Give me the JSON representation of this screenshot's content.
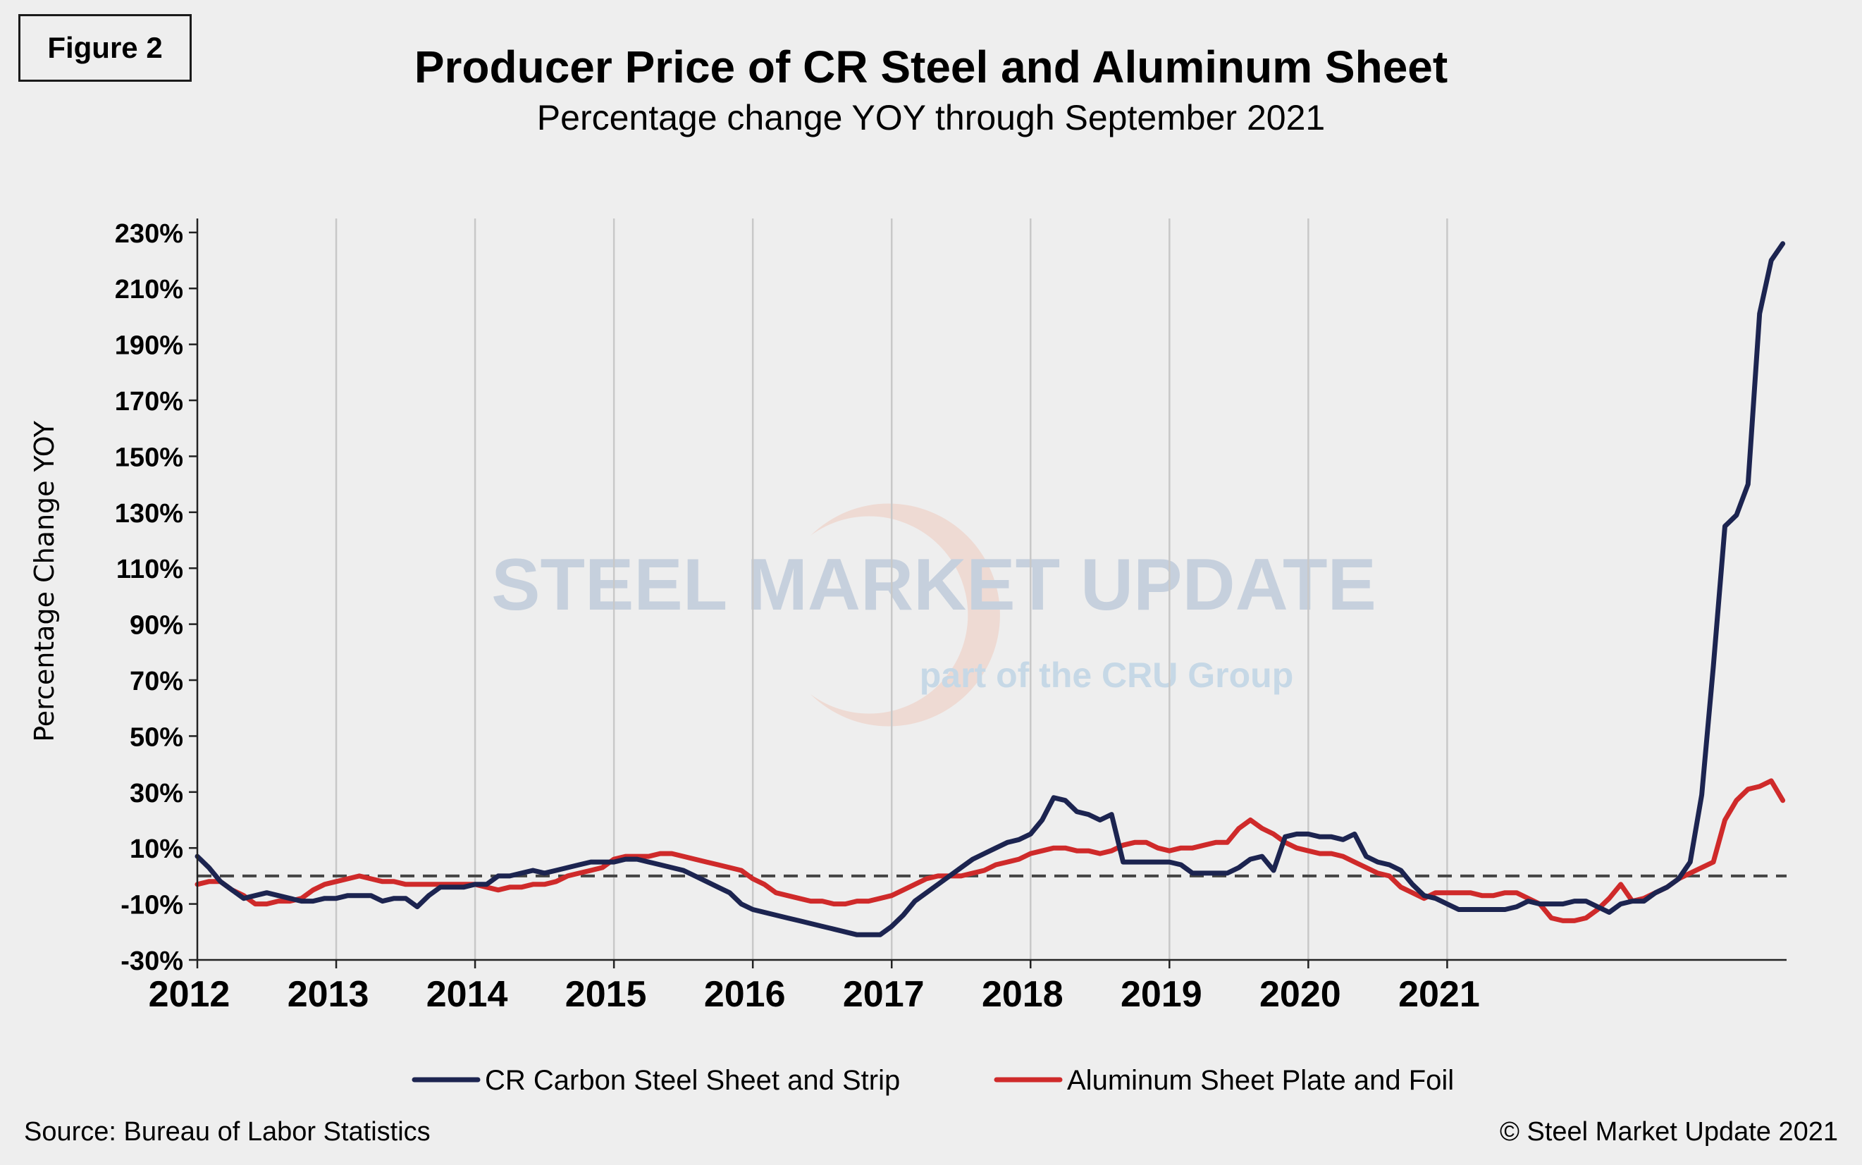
{
  "figure_label": "Figure 2",
  "title": "Producer Price of CR Steel and Aluminum Sheet",
  "subtitle": "Percentage change YOY through September 2021",
  "source": "Source: Bureau of Labor Statistics",
  "copyright": "© Steel Market Update 2021",
  "watermark": {
    "brand": "STEEL MARKET UPDATE",
    "line2": "part of the CRU Group"
  },
  "chart_data": {
    "type": "line",
    "ylabel": "Percentage Change YOY",
    "xlabel": "",
    "ylim": [
      -30,
      235
    ],
    "y_ticks": [
      -30,
      -10,
      10,
      30,
      50,
      70,
      90,
      110,
      130,
      150,
      170,
      190,
      210,
      230
    ],
    "y_tick_labels": [
      "-30%",
      "-10%",
      "10%",
      "30%",
      "50%",
      "70%",
      "90%",
      "110%",
      "130%",
      "150%",
      "170%",
      "190%",
      "210%",
      "230%"
    ],
    "x_tick_labels": [
      "2012",
      "2013",
      "2014",
      "2015",
      "2016",
      "2017",
      "2018",
      "2019",
      "2020",
      "2021"
    ],
    "start": "2012-01",
    "end": "2021-09",
    "reference_line": 0,
    "grid": "vertical",
    "legend_position": "bottom",
    "series": [
      {
        "name": "CR Carbon Steel Sheet and Strip",
        "color": "#1c2450",
        "values": [
          7,
          3,
          -2,
          -5,
          -8,
          -7,
          -6,
          -7,
          -8,
          -9,
          -9,
          -8,
          -8,
          -7,
          -7,
          -7,
          -9,
          -8,
          -8,
          -11,
          -7,
          -4,
          -4,
          -4,
          -3,
          -3,
          0,
          0,
          1,
          2,
          1,
          2,
          3,
          4,
          5,
          5,
          5,
          6,
          6,
          5,
          4,
          3,
          2,
          0,
          -2,
          -4,
          -6,
          -10,
          -12,
          -13,
          -14,
          -15,
          -16,
          -17,
          -18,
          -19,
          -20,
          -21,
          -21,
          -21,
          -18,
          -14,
          -9,
          -6,
          -3,
          0,
          3,
          6,
          8,
          10,
          12,
          13,
          15,
          20,
          28,
          27,
          23,
          22,
          20,
          22,
          5,
          5,
          5,
          5,
          5,
          4,
          1,
          1,
          1,
          1,
          3,
          6,
          7,
          2,
          14,
          15,
          15,
          14,
          14,
          13,
          15,
          7,
          5,
          4,
          2,
          -3,
          -7,
          -8,
          -10,
          -12,
          -12,
          -12,
          -12,
          -12,
          -11,
          -9,
          -10,
          -10,
          -10,
          -9,
          -9,
          -11,
          -13,
          -10,
          -9,
          -9,
          -6,
          -4,
          -1,
          5,
          29,
          75,
          125,
          129,
          140,
          201,
          220,
          226
        ]
      },
      {
        "name": "Aluminum Sheet Plate and Foil",
        "color": "#cf2a2a",
        "values": [
          -3,
          -2,
          -2,
          -5,
          -7,
          -10,
          -10,
          -9,
          -9,
          -8,
          -5,
          -3,
          -2,
          -1,
          0,
          -1,
          -2,
          -2,
          -3,
          -3,
          -3,
          -3,
          -3,
          -3,
          -3,
          -4,
          -5,
          -4,
          -4,
          -3,
          -3,
          -2,
          0,
          1,
          2,
          3,
          6,
          7,
          7,
          7,
          8,
          8,
          7,
          6,
          5,
          4,
          3,
          2,
          -1,
          -3,
          -6,
          -7,
          -8,
          -9,
          -9,
          -10,
          -10,
          -9,
          -9,
          -8,
          -7,
          -5,
          -3,
          -1,
          0,
          0,
          0,
          1,
          2,
          4,
          5,
          6,
          8,
          9,
          10,
          10,
          9,
          9,
          8,
          9,
          11,
          12,
          12,
          10,
          9,
          10,
          10,
          11,
          12,
          12,
          17,
          20,
          17,
          15,
          12,
          10,
          9,
          8,
          8,
          7,
          5,
          3,
          1,
          0,
          -4,
          -6,
          -8,
          -6,
          -6,
          -6,
          -6,
          -7,
          -7,
          -6,
          -6,
          -8,
          -10,
          -15,
          -16,
          -16,
          -15,
          -12,
          -8,
          -3,
          -9,
          -8,
          -6,
          -4,
          -1,
          1,
          3,
          5,
          20,
          27,
          31,
          32,
          34,
          27
        ]
      }
    ]
  }
}
